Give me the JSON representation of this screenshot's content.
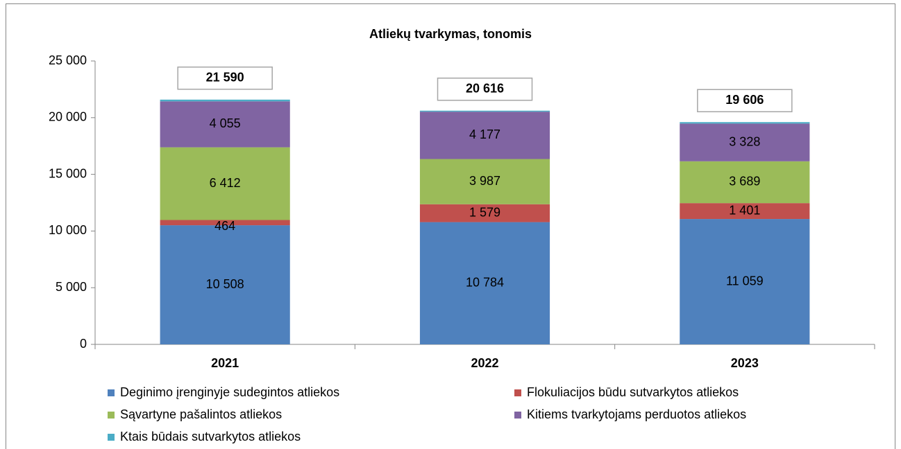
{
  "chart_data": {
    "type": "stacked_bar",
    "title": "Atliekų tvarkymas, tonomis",
    "categories": [
      "2021",
      "2022",
      "2023"
    ],
    "series": [
      {
        "name": "Deginimo įrenginyje sudegintos atliekos",
        "color": "#4f81bd",
        "values": [
          10508,
          10784,
          11059
        ],
        "value_labels": [
          "10 508",
          "10 784",
          "11 059"
        ]
      },
      {
        "name": "Flokuliacijos būdu sutvarkytos atliekos",
        "color": "#c0504d",
        "values": [
          464,
          1579,
          1401
        ],
        "value_labels": [
          "464",
          "1 579",
          "1 401"
        ]
      },
      {
        "name": "Sąvartyne pašalintos atliekos",
        "color": "#9bbb59",
        "values": [
          6412,
          3987,
          3689
        ],
        "value_labels": [
          "6 412",
          "3 987",
          "3 689"
        ]
      },
      {
        "name": "Kitiems tvarkytojams perduotos atliekos",
        "color": "#8064a2",
        "values": [
          4055,
          4177,
          3328
        ],
        "value_labels": [
          "4 055",
          "4 177",
          "3 328"
        ]
      },
      {
        "name": "Ktais būdais sutvarkytos atliekos",
        "color": "#4bacc6",
        "values": [
          151,
          89,
          129
        ]
      }
    ],
    "totals": {
      "values": [
        21590,
        20616,
        19606
      ],
      "value_labels": [
        "21 590",
        "20 616",
        "19 606"
      ]
    },
    "ylim": [
      0,
      25000
    ],
    "yticks": [
      0,
      {
        "value": 5000,
        "label": "5 000"
      },
      {
        "value": 10000,
        "label": "10 000"
      },
      {
        "value": 15000,
        "label": "15 000"
      },
      {
        "value": 20000,
        "label": "20 000"
      },
      {
        "value": 25000,
        "label": "25 000"
      }
    ],
    "grid": false
  }
}
